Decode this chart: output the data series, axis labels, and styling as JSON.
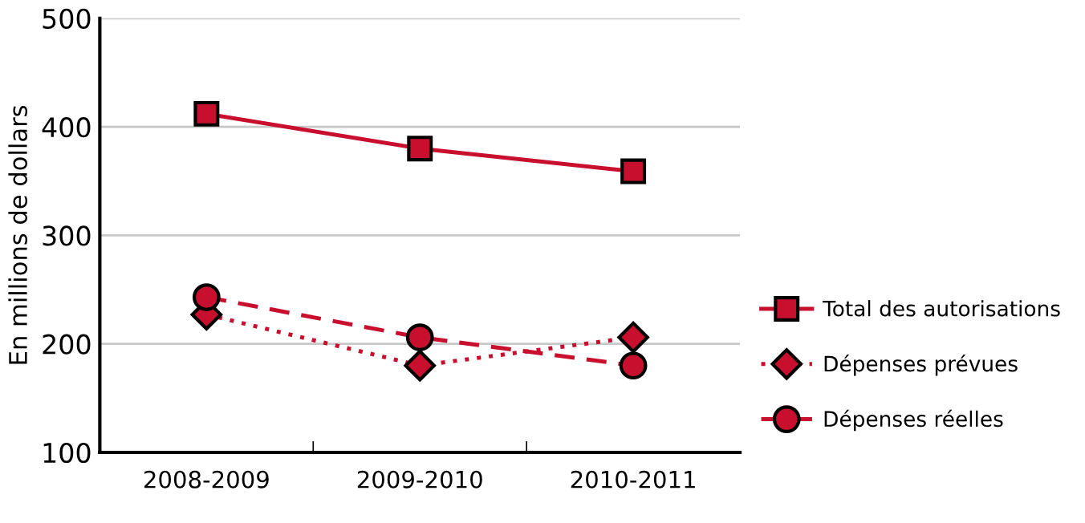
{
  "chart_data": {
    "type": "line",
    "ylabel": "En millions de dollars",
    "categories": [
      "2008-2009",
      "2009-2010",
      "2010-2011"
    ],
    "series": [
      {
        "name": "Total des autorisations",
        "color": "#c8102e",
        "values": [
          412,
          380,
          359
        ],
        "marker": "square",
        "line_style": "solid"
      },
      {
        "name": "Dépenses prévues",
        "color": "#c8102e",
        "values": [
          227,
          180,
          206
        ],
        "marker": "diamond",
        "line_style": "dotted"
      },
      {
        "name": "Dépenses réelles",
        "color": "#c8102e",
        "values": [
          243,
          206,
          180
        ],
        "marker": "circle",
        "line_style": "dashed"
      }
    ],
    "ylim": [
      100,
      500
    ],
    "yticks": [
      100,
      200,
      300,
      400,
      500
    ],
    "grid": "y",
    "legend": "right"
  }
}
